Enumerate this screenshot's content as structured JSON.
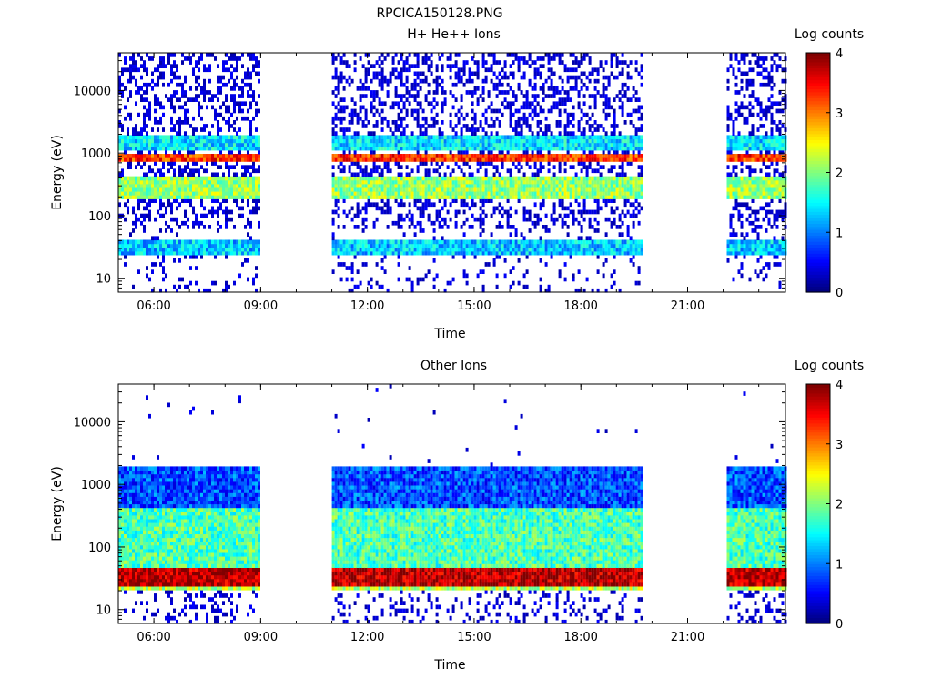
{
  "figure_title": "RPCICA150128.PNG",
  "chart_data": [
    {
      "type": "heatmap",
      "title": "H+ He++ Ions",
      "xlabel": "Time",
      "ylabel": "Energy (eV)",
      "colorbar_label": "Log counts",
      "colorbar_range": [
        0,
        4
      ],
      "colorbar_ticks": [
        "0",
        "1",
        "2",
        "3",
        "4"
      ],
      "colormap": "jet",
      "x_ticks": [
        "06:00",
        "09:00",
        "12:00",
        "15:00",
        "18:00",
        "21:00"
      ],
      "x_range_hours": [
        5.0,
        23.75
      ],
      "y_ticks": [
        "10",
        "100",
        "1000",
        "10000"
      ],
      "y_scale": "log",
      "y_range_eV": [
        6,
        40000
      ],
      "data_intervals_hours": [
        [
          5.0,
          9.0
        ],
        [
          11.0,
          19.7
        ],
        [
          22.1,
          23.75
        ]
      ],
      "bands": [
        {
          "energy_eV": [
            700,
            1000
          ],
          "log_counts": 3.3,
          "feature": "peak"
        },
        {
          "energy_eV": [
            1100,
            2000
          ],
          "log_counts": 1.4,
          "feature": "halo"
        },
        {
          "energy_eV": [
            200,
            450
          ],
          "log_counts": 2.1,
          "feature": "mid band"
        },
        {
          "energy_eV": [
            25,
            40
          ],
          "log_counts": 1.3,
          "feature": "low band"
        }
      ]
    },
    {
      "type": "heatmap",
      "title": "Other Ions",
      "xlabel": "Time",
      "ylabel": "Energy (eV)",
      "colorbar_label": "Log counts",
      "colorbar_range": [
        0,
        4
      ],
      "colorbar_ticks": [
        "0",
        "1",
        "2",
        "3",
        "4"
      ],
      "colormap": "jet",
      "x_ticks": [
        "06:00",
        "09:00",
        "12:00",
        "15:00",
        "18:00",
        "21:00"
      ],
      "x_range_hours": [
        5.0,
        23.75
      ],
      "y_ticks": [
        "10",
        "100",
        "1000",
        "10000"
      ],
      "y_scale": "log",
      "y_range_eV": [
        6,
        40000
      ],
      "data_intervals_hours": [
        [
          5.0,
          9.0
        ],
        [
          11.0,
          19.7
        ],
        [
          22.1,
          23.75
        ]
      ],
      "bands": [
        {
          "energy_eV": [
            25,
            45
          ],
          "log_counts": 3.8,
          "feature": "peak"
        },
        {
          "energy_eV": [
            45,
            400
          ],
          "log_counts": 1.8,
          "feature": "broad"
        },
        {
          "energy_eV": [
            400,
            2000
          ],
          "log_counts": 0.8,
          "feature": "upper"
        },
        {
          "energy_eV": [
            20,
            25
          ],
          "log_counts": 2.2,
          "feature": "lower edge"
        }
      ]
    }
  ]
}
